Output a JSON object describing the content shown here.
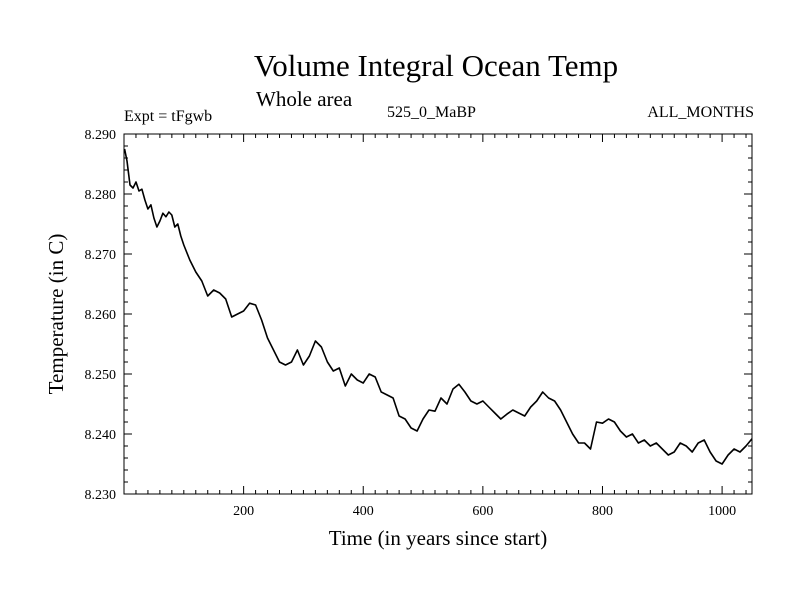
{
  "chart_data": {
    "type": "line",
    "title": "Volume Integral Ocean Temp",
    "subtitle": "Whole area",
    "annotations": {
      "experiment": "Expt = tFgwb",
      "run": "525_0_MaBP",
      "period": "ALL_MONTHS"
    },
    "xlabel": "Time (in years since start)",
    "ylabel": "Temperature (in C)",
    "xlim": [
      0,
      1050
    ],
    "ylim": [
      8.23,
      8.29
    ],
    "x_ticks": [
      200,
      400,
      600,
      800,
      1000
    ],
    "x_tick_labels": [
      "200",
      "400",
      "600",
      "800",
      "1000"
    ],
    "y_ticks": [
      8.23,
      8.24,
      8.25,
      8.26,
      8.27,
      8.28,
      8.29
    ],
    "y_tick_labels": [
      "8.230",
      "8.240",
      "8.250",
      "8.260",
      "8.270",
      "8.280",
      "8.290"
    ],
    "grid": false,
    "series": [
      {
        "name": "Volume integral ocean temperature",
        "color": "#000000",
        "x": [
          1,
          5,
          10,
          15,
          20,
          25,
          30,
          35,
          40,
          45,
          50,
          55,
          60,
          65,
          70,
          75,
          80,
          85,
          90,
          95,
          100,
          110,
          120,
          130,
          140,
          150,
          160,
          170,
          180,
          190,
          200,
          210,
          220,
          230,
          240,
          250,
          260,
          270,
          280,
          290,
          300,
          310,
          320,
          330,
          340,
          350,
          360,
          370,
          380,
          390,
          400,
          410,
          420,
          430,
          440,
          450,
          460,
          470,
          480,
          490,
          500,
          510,
          520,
          530,
          540,
          550,
          560,
          570,
          580,
          590,
          600,
          610,
          620,
          630,
          640,
          650,
          660,
          670,
          680,
          690,
          700,
          710,
          720,
          730,
          740,
          750,
          760,
          770,
          780,
          790,
          800,
          810,
          820,
          830,
          840,
          850,
          860,
          870,
          880,
          890,
          900,
          910,
          920,
          930,
          940,
          950,
          960,
          970,
          980,
          990,
          1000,
          1010,
          1020,
          1030,
          1040,
          1050
        ],
        "values": [
          8.2875,
          8.2855,
          8.2815,
          8.281,
          8.282,
          8.2805,
          8.2808,
          8.279,
          8.2775,
          8.2782,
          8.276,
          8.2745,
          8.2755,
          8.2768,
          8.2762,
          8.277,
          8.2765,
          8.2745,
          8.275,
          8.273,
          8.2715,
          8.269,
          8.267,
          8.2655,
          8.263,
          8.264,
          8.2635,
          8.2625,
          8.2595,
          8.26,
          8.2605,
          8.2618,
          8.2615,
          8.259,
          8.256,
          8.254,
          8.252,
          8.2515,
          8.252,
          8.254,
          8.2515,
          8.253,
          8.2555,
          8.2545,
          8.252,
          8.2505,
          8.251,
          8.248,
          8.25,
          8.249,
          8.2485,
          8.25,
          8.2495,
          8.247,
          8.2465,
          8.246,
          8.243,
          8.2425,
          8.241,
          8.2405,
          8.2425,
          8.244,
          8.2438,
          8.246,
          8.245,
          8.2475,
          8.2483,
          8.247,
          8.2455,
          8.245,
          8.2455,
          8.2445,
          8.2435,
          8.2425,
          8.2433,
          8.244,
          8.2435,
          8.243,
          8.2445,
          8.2455,
          8.247,
          8.246,
          8.2455,
          8.244,
          8.242,
          8.24,
          8.2385,
          8.2385,
          8.2375,
          8.242,
          8.2418,
          8.2425,
          8.242,
          8.2405,
          8.2395,
          8.24,
          8.2385,
          8.239,
          8.238,
          8.2385,
          8.2375,
          8.2365,
          8.237,
          8.2385,
          8.238,
          8.237,
          8.2385,
          8.239,
          8.237,
          8.2355,
          8.235,
          8.2365,
          8.2375,
          8.237,
          8.238,
          8.2392
        ]
      }
    ]
  }
}
